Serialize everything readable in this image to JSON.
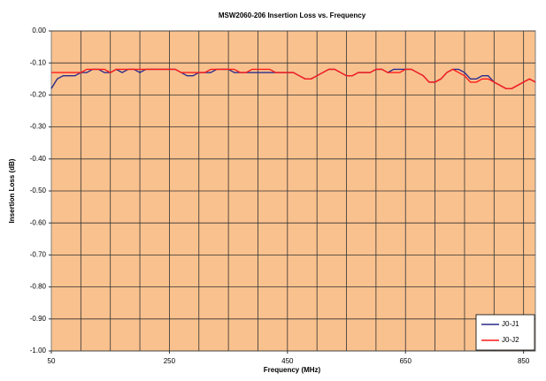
{
  "chart_data": {
    "type": "line",
    "title": "MSW2060-206 Insertion Loss vs. Frequency",
    "xlabel": "Frequency (MHz)",
    "ylabel": "Insertion Loss (dB)",
    "x": [
      50,
      60,
      70,
      80,
      90,
      100,
      110,
      120,
      130,
      140,
      150,
      160,
      170,
      180,
      190,
      200,
      210,
      220,
      230,
      240,
      250,
      260,
      270,
      280,
      290,
      300,
      310,
      320,
      330,
      340,
      350,
      360,
      370,
      380,
      390,
      400,
      410,
      420,
      430,
      440,
      450,
      460,
      470,
      480,
      490,
      500,
      510,
      520,
      530,
      540,
      550,
      560,
      570,
      580,
      590,
      600,
      610,
      620,
      630,
      640,
      650,
      660,
      670,
      680,
      690,
      700,
      710,
      720,
      730,
      740,
      750,
      760,
      770,
      780,
      790,
      800,
      810,
      820,
      830,
      840,
      850,
      860,
      870
    ],
    "series": [
      {
        "name": "J0-J1",
        "color": "#2a2a8c",
        "values": [
          -0.18,
          -0.15,
          -0.14,
          -0.14,
          -0.14,
          -0.13,
          -0.13,
          -0.12,
          -0.12,
          -0.13,
          -0.13,
          -0.12,
          -0.13,
          -0.12,
          -0.12,
          -0.13,
          -0.12,
          -0.12,
          -0.12,
          -0.12,
          -0.12,
          -0.12,
          -0.13,
          -0.14,
          -0.14,
          -0.13,
          -0.13,
          -0.13,
          -0.12,
          -0.12,
          -0.12,
          -0.13,
          -0.13,
          -0.13,
          -0.13,
          -0.13,
          -0.13,
          -0.13,
          -0.13,
          -0.13,
          -0.13,
          -0.13,
          -0.14,
          -0.15,
          -0.15,
          -0.14,
          -0.13,
          -0.12,
          -0.12,
          -0.13,
          -0.14,
          -0.14,
          -0.13,
          -0.13,
          -0.13,
          -0.12,
          -0.12,
          -0.13,
          -0.12,
          -0.12,
          -0.12,
          -0.12,
          -0.13,
          -0.14,
          -0.16,
          -0.16,
          -0.15,
          -0.13,
          -0.12,
          -0.12,
          -0.13,
          -0.15,
          -0.15,
          -0.14,
          -0.14,
          -0.16,
          -0.17,
          -0.18,
          -0.18,
          -0.17,
          -0.16,
          -0.15,
          -0.16
        ]
      },
      {
        "name": "J0-J2",
        "color": "#ff1a1a",
        "values": [
          -0.13,
          -0.13,
          -0.13,
          -0.13,
          -0.13,
          -0.13,
          -0.12,
          -0.12,
          -0.12,
          -0.12,
          -0.13,
          -0.12,
          -0.12,
          -0.12,
          -0.12,
          -0.12,
          -0.12,
          -0.12,
          -0.12,
          -0.12,
          -0.12,
          -0.12,
          -0.13,
          -0.13,
          -0.13,
          -0.13,
          -0.13,
          -0.12,
          -0.12,
          -0.12,
          -0.12,
          -0.12,
          -0.13,
          -0.13,
          -0.12,
          -0.12,
          -0.12,
          -0.12,
          -0.13,
          -0.13,
          -0.13,
          -0.13,
          -0.14,
          -0.15,
          -0.15,
          -0.14,
          -0.13,
          -0.12,
          -0.12,
          -0.13,
          -0.14,
          -0.14,
          -0.13,
          -0.13,
          -0.13,
          -0.12,
          -0.12,
          -0.13,
          -0.13,
          -0.13,
          -0.12,
          -0.12,
          -0.13,
          -0.14,
          -0.16,
          -0.16,
          -0.15,
          -0.13,
          -0.12,
          -0.13,
          -0.14,
          -0.16,
          -0.16,
          -0.15,
          -0.15,
          -0.16,
          -0.17,
          -0.18,
          -0.18,
          -0.17,
          -0.16,
          -0.15,
          -0.16
        ]
      }
    ],
    "xlim": [
      50,
      870
    ],
    "xticks": [
      50,
      250,
      450,
      650,
      850
    ],
    "xgrid": [
      100,
      150,
      200,
      250,
      300,
      350,
      400,
      450,
      500,
      550,
      600,
      650,
      700,
      750,
      800,
      850
    ],
    "ylim": [
      -1,
      0
    ],
    "yticks": [
      {
        "value": 0,
        "label": "0.00"
      },
      {
        "value": -0.1,
        "label": "-0.10"
      },
      {
        "value": -0.2,
        "label": "-0.20"
      },
      {
        "value": -0.3,
        "label": "-0.30"
      },
      {
        "value": -0.4,
        "label": "-0.40"
      },
      {
        "value": -0.5,
        "label": "-0.50"
      },
      {
        "value": -0.6,
        "label": "-0.60"
      },
      {
        "value": -0.7,
        "label": "-0.70"
      },
      {
        "value": -0.8,
        "label": "-0.80"
      },
      {
        "value": -0.9,
        "label": "-0.90"
      },
      {
        "value": -1,
        "label": "-1.00"
      }
    ],
    "grid": true,
    "plot_background": "#f9c18e",
    "legend": "lower right"
  }
}
